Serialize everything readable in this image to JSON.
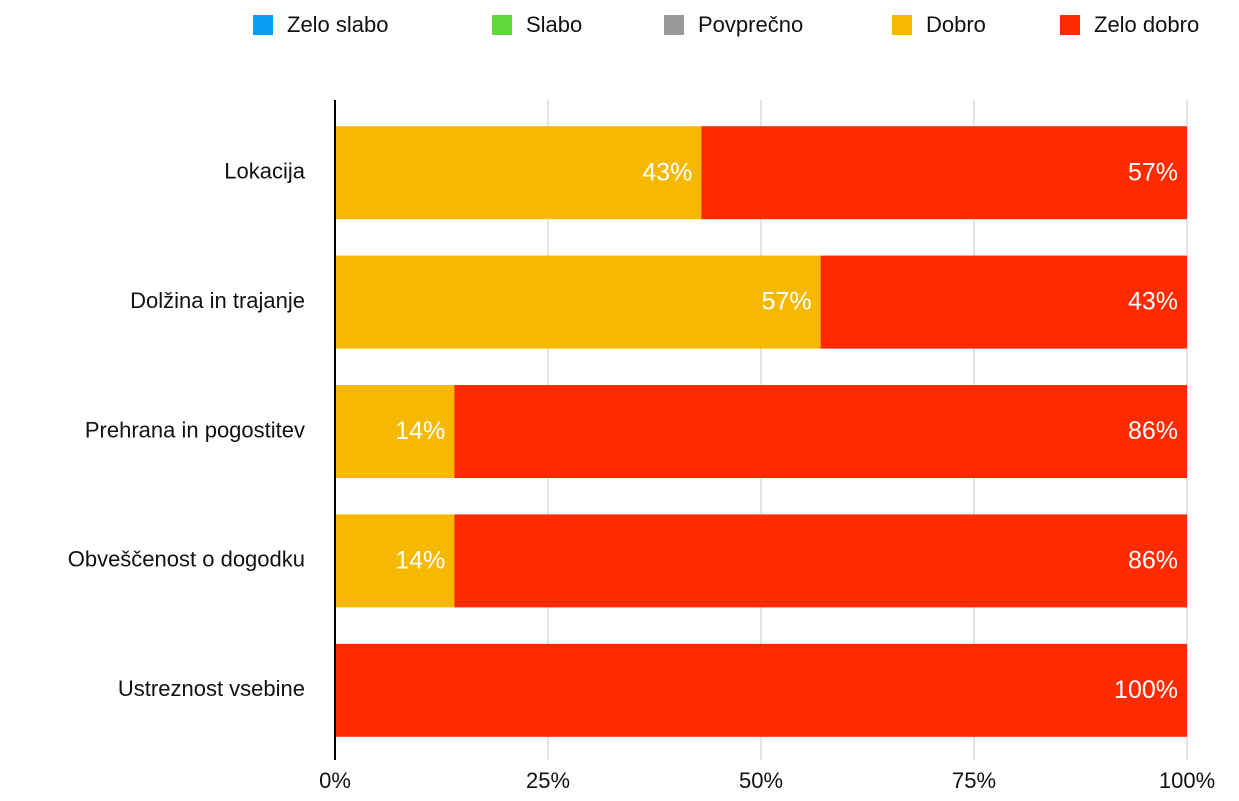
{
  "chart_data": {
    "type": "stacked-bar-horizontal",
    "categories": [
      "Lokacija",
      "Dolžina in trajanje",
      "Prehrana in pogostitev",
      "Obveščenost o dogodku",
      "Ustreznost vsebine"
    ],
    "series": [
      {
        "name": "Zelo slabo",
        "color": "#0a9ef7",
        "values": [
          0,
          0,
          0,
          0,
          0
        ],
        "value_labels": [
          null,
          null,
          null,
          null,
          null
        ]
      },
      {
        "name": "Slabo",
        "color": "#5fd83a",
        "values": [
          0,
          0,
          0,
          0,
          0
        ],
        "value_labels": [
          null,
          null,
          null,
          null,
          null
        ]
      },
      {
        "name": "Povprečno",
        "color": "#999999",
        "values": [
          0,
          0,
          0,
          0,
          0
        ],
        "value_labels": [
          null,
          null,
          null,
          null,
          null
        ]
      },
      {
        "name": "Dobro",
        "color": "#f6b900",
        "values": [
          43,
          57,
          14,
          14,
          0
        ],
        "value_labels": [
          "43%",
          "57%",
          "14%",
          "14%",
          null
        ]
      },
      {
        "name": "Zelo dobro",
        "color": "#ff2a00",
        "values": [
          57,
          43,
          86,
          86,
          100
        ],
        "value_labels": [
          "57%",
          "43%",
          "86%",
          "86%",
          "100%"
        ]
      }
    ],
    "xlim": [
      0,
      100
    ],
    "xticks": [
      {
        "value": 0,
        "label": "0%"
      },
      {
        "value": 25,
        "label": "25%"
      },
      {
        "value": 50,
        "label": "50%"
      },
      {
        "value": 75,
        "label": "75%"
      },
      {
        "value": 100,
        "label": "100%"
      }
    ],
    "grid": true,
    "legend": "top"
  }
}
